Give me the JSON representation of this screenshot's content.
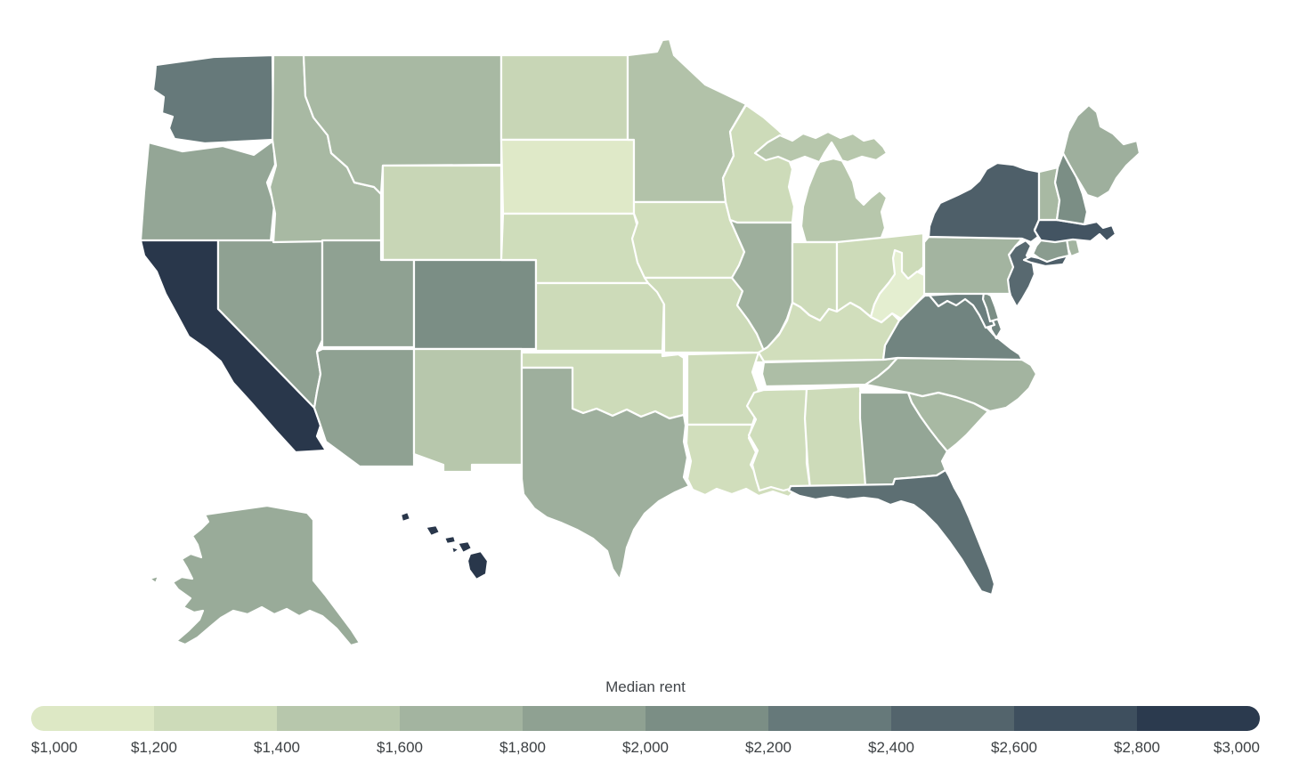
{
  "page": {
    "background": "#ffffff",
    "label_color": "#3c4043",
    "title_color": "#414549",
    "state_border_color": "#ffffff"
  },
  "legend": {
    "title": "Median rent",
    "tick_labels": [
      "$1,000",
      "$1,200",
      "$1,400",
      "$1,600",
      "$1,800",
      "$2,000",
      "$2,200",
      "$2,400",
      "$2,600",
      "$2,800",
      "$3,000"
    ],
    "block_colors": [
      "#dde8c5",
      "#cddbb9",
      "#b7c7ac",
      "#a3b4a0",
      "#8fa192",
      "#7b8e85",
      "#66797a",
      "#53646c",
      "#3e4f5e",
      "#2b3a4e"
    ]
  },
  "chart_data": {
    "type": "heatmap",
    "subtype": "choropleth-us-states",
    "title": "Median rent",
    "unit": "USD per month",
    "domain": [
      1000,
      3000
    ],
    "legend_position": "bottom",
    "legend_ticks": [
      "$1,000",
      "$1,200",
      "$1,400",
      "$1,600",
      "$1,800",
      "$2,000",
      "$2,200",
      "$2,400",
      "$2,600",
      "$2,800",
      "$3,000"
    ],
    "color_scale_stops": [
      [
        1000,
        "#e6efd3"
      ],
      [
        1100,
        "#dde8c5"
      ],
      [
        1300,
        "#cddbb9"
      ],
      [
        1500,
        "#b7c7ac"
      ],
      [
        1700,
        "#a3b4a0"
      ],
      [
        1900,
        "#8fa192"
      ],
      [
        2100,
        "#7b8e85"
      ],
      [
        2300,
        "#66797a"
      ],
      [
        2500,
        "#53646c"
      ],
      [
        2700,
        "#3e4f5e"
      ],
      [
        2900,
        "#2b3a4e"
      ],
      [
        3000,
        "#263447"
      ]
    ],
    "states": [
      {
        "abbr": "WA",
        "name": "Washington",
        "value": 2300
      },
      {
        "abbr": "OR",
        "name": "Oregon",
        "value": 1850
      },
      {
        "abbr": "CA",
        "name": "California",
        "value": 2950
      },
      {
        "abbr": "NV",
        "name": "Nevada",
        "value": 1900
      },
      {
        "abbr": "ID",
        "name": "Idaho",
        "value": 1650
      },
      {
        "abbr": "MT",
        "name": "Montana",
        "value": 1650
      },
      {
        "abbr": "WY",
        "name": "Wyoming",
        "value": 1350
      },
      {
        "abbr": "UT",
        "name": "Utah",
        "value": 1900
      },
      {
        "abbr": "CO",
        "name": "Colorado",
        "value": 2100
      },
      {
        "abbr": "AZ",
        "name": "Arizona",
        "value": 1900
      },
      {
        "abbr": "NM",
        "name": "New Mexico",
        "value": 1500
      },
      {
        "abbr": "ND",
        "name": "North Dakota",
        "value": 1350
      },
      {
        "abbr": "SD",
        "name": "South Dakota",
        "value": 1080
      },
      {
        "abbr": "NE",
        "name": "Nebraska",
        "value": 1270
      },
      {
        "abbr": "KS",
        "name": "Kansas",
        "value": 1300
      },
      {
        "abbr": "OK",
        "name": "Oklahoma",
        "value": 1300
      },
      {
        "abbr": "TX",
        "name": "Texas",
        "value": 1750
      },
      {
        "abbr": "MN",
        "name": "Minnesota",
        "value": 1550
      },
      {
        "abbr": "IA",
        "name": "Iowa",
        "value": 1250
      },
      {
        "abbr": "MO",
        "name": "Missouri",
        "value": 1300
      },
      {
        "abbr": "AR",
        "name": "Arkansas",
        "value": 1300
      },
      {
        "abbr": "LA",
        "name": "Louisiana",
        "value": 1250
      },
      {
        "abbr": "WI",
        "name": "Wisconsin",
        "value": 1300
      },
      {
        "abbr": "IL",
        "name": "Illinois",
        "value": 1750
      },
      {
        "abbr": "MI",
        "name": "Michigan",
        "value": 1500
      },
      {
        "abbr": "IN",
        "name": "Indiana",
        "value": 1300
      },
      {
        "abbr": "OH",
        "name": "Ohio",
        "value": 1300
      },
      {
        "abbr": "KY",
        "name": "Kentucky",
        "value": 1250
      },
      {
        "abbr": "TN",
        "name": "Tennessee",
        "value": 1600
      },
      {
        "abbr": "MS",
        "name": "Mississippi",
        "value": 1270
      },
      {
        "abbr": "AL",
        "name": "Alabama",
        "value": 1300
      },
      {
        "abbr": "GA",
        "name": "Georgia",
        "value": 1850
      },
      {
        "abbr": "FL",
        "name": "Florida",
        "value": 2400
      },
      {
        "abbr": "SC",
        "name": "South Carolina",
        "value": 1650
      },
      {
        "abbr": "NC",
        "name": "North Carolina",
        "value": 1700
      },
      {
        "abbr": "VA",
        "name": "Virginia",
        "value": 2200
      },
      {
        "abbr": "WV",
        "name": "West Virginia",
        "value": 1020
      },
      {
        "abbr": "MD",
        "name": "Maryland",
        "value": 2250
      },
      {
        "abbr": "DE",
        "name": "Delaware",
        "value": 2100
      },
      {
        "abbr": "NJ",
        "name": "New Jersey",
        "value": 2450
      },
      {
        "abbr": "PA",
        "name": "Pennsylvania",
        "value": 1700
      },
      {
        "abbr": "NY",
        "name": "New York",
        "value": 2550
      },
      {
        "abbr": "CT",
        "name": "Connecticut",
        "value": 1950
      },
      {
        "abbr": "RI",
        "name": "Rhode Island",
        "value": 1700
      },
      {
        "abbr": "MA",
        "name": "Massachusetts",
        "value": 2650
      },
      {
        "abbr": "VT",
        "name": "Vermont",
        "value": 1650
      },
      {
        "abbr": "NH",
        "name": "New Hampshire",
        "value": 2100
      },
      {
        "abbr": "ME",
        "name": "Maine",
        "value": 1750
      },
      {
        "abbr": "AK",
        "name": "Alaska",
        "value": 1800
      },
      {
        "abbr": "HI",
        "name": "Hawaii",
        "value": 2950
      }
    ]
  }
}
